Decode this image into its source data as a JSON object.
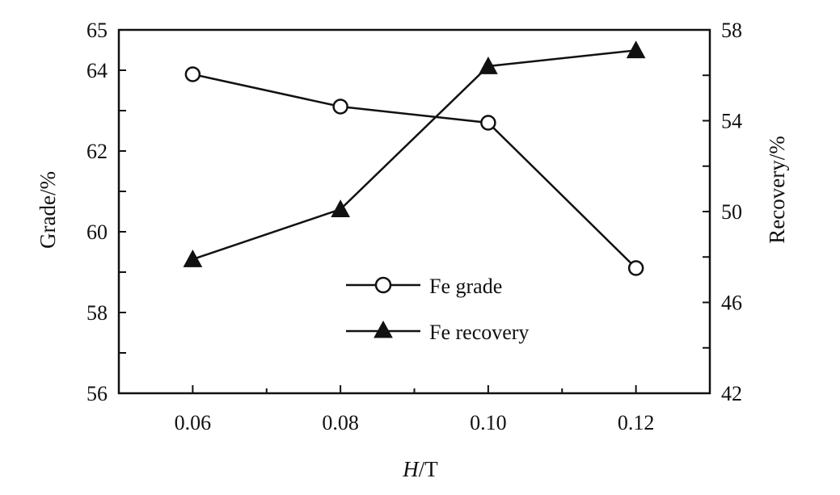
{
  "chart_data": {
    "type": "line",
    "xlabel_italic": "H",
    "xlabel_rest": "/T",
    "ylabel_left": "Grade/%",
    "ylabel_right": "Recovery/%",
    "x_ticks": [
      "0.06",
      "0.08",
      "0.10",
      "0.12"
    ],
    "y_left_ticks": [
      "56",
      "58",
      "60",
      "62",
      "64",
      "65"
    ],
    "y_right_ticks": [
      "42",
      "46",
      "50",
      "54",
      "58"
    ],
    "xlim": [
      0.05,
      0.13
    ],
    "ylim_left": [
      56,
      65
    ],
    "ylim_right": [
      42,
      58
    ],
    "x": [
      0.06,
      0.08,
      0.1,
      0.12
    ],
    "series": [
      {
        "name": "Fe grade",
        "axis": "left",
        "marker": "circle-open",
        "values": [
          63.9,
          63.1,
          62.7,
          59.1
        ]
      },
      {
        "name": "Fe recovery",
        "axis": "right",
        "marker": "triangle-filled",
        "values": [
          47.9,
          50.1,
          56.4,
          57.1
        ]
      }
    ],
    "legend": "center"
  }
}
